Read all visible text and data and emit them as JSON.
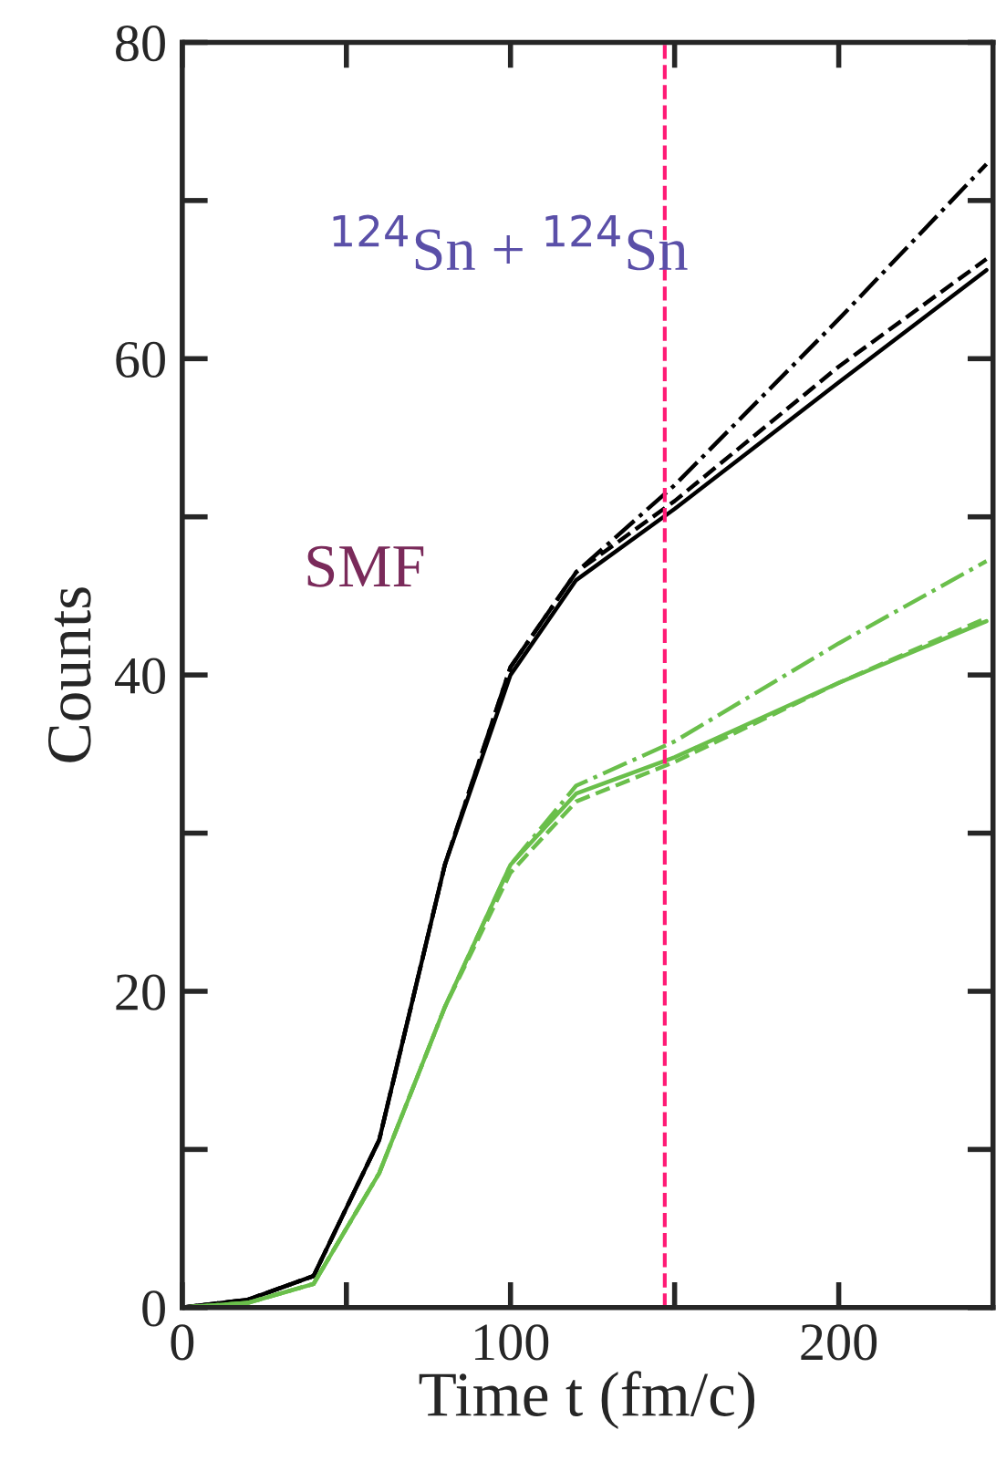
{
  "chart_data": {
    "type": "line",
    "xlabel": "Time t (fm/c)",
    "ylabel": "Counts",
    "x": [
      0,
      20,
      40,
      60,
      80,
      100,
      120,
      150,
      200,
      245
    ],
    "series": [
      {
        "color": "#000000",
        "line_style": "solid",
        "values": [
          0,
          0.5,
          2,
          10.6,
          28,
          40,
          46,
          50.5,
          58.5,
          65.6
        ]
      },
      {
        "color": "#000000",
        "line_style": "dashed",
        "values": [
          0,
          0.5,
          2,
          10.6,
          28,
          40.5,
          46.5,
          51,
          59.5,
          66.3
        ]
      },
      {
        "color": "#000000",
        "line_style": "dashdot",
        "values": [
          0,
          0.5,
          2,
          10.6,
          28,
          40.5,
          46.5,
          52,
          62.5,
          72.3
        ]
      },
      {
        "color": "#6abf4b",
        "line_style": "solid",
        "values": [
          0,
          0.3,
          1.5,
          8.5,
          19,
          28,
          32.5,
          34.8,
          39.5,
          43.4
        ]
      },
      {
        "color": "#6abf4b",
        "line_style": "dashed",
        "values": [
          0,
          0.3,
          1.5,
          8.5,
          19,
          27.5,
          32,
          34.5,
          39.5,
          43.6
        ]
      },
      {
        "color": "#6abf4b",
        "line_style": "dashdot",
        "values": [
          0,
          0.3,
          1.5,
          8.5,
          19,
          28,
          33,
          35.8,
          42,
          47.2
        ]
      }
    ],
    "xlim": [
      0,
      247
    ],
    "ylim": [
      0,
      80
    ],
    "xticks": [
      0,
      {
        "value": 50,
        "label": null
      },
      100,
      {
        "value": 150,
        "label": null
      },
      200
    ],
    "yticks": [
      0,
      {
        "value": 10,
        "label": null
      },
      20,
      {
        "value": 30,
        "label": null
      },
      40,
      {
        "value": 50,
        "label": null
      },
      60,
      {
        "value": 70,
        "label": null
      },
      80
    ],
    "ref_lines": [
      {
        "axis": "x",
        "value": 147,
        "color": "#ff1a75",
        "line_style": "dashed"
      }
    ],
    "annotations": [
      "$^{124}$Sn + $^{124}$Sn",
      "SMF"
    ],
    "grid": false,
    "legend": false,
    "marker": "none"
  }
}
